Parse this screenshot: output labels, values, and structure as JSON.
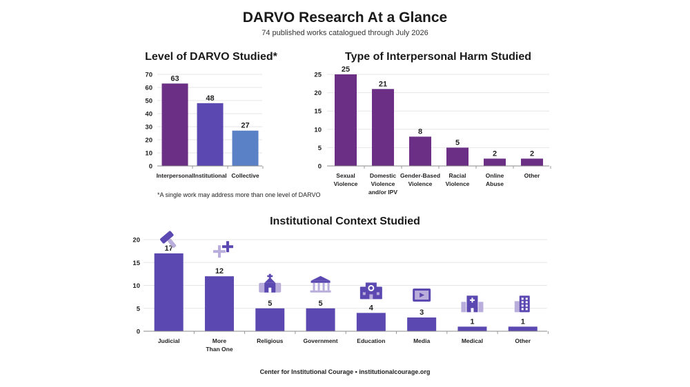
{
  "header": {
    "title": "DARVO Research At a Glance",
    "subtitle": "74 published works catalogued through July 2026"
  },
  "footnote": "*A single work may address more than one level of DARVO",
  "footer": "Center for Institutional Courage  •  institutionalcourage.org",
  "colors": {
    "purple": "#6b2f86",
    "indigo": "#5b48b0",
    "blue": "#5a80c5",
    "icon_dark": "#5b48b0",
    "icon_light": "#b8addb"
  },
  "chart_data": [
    {
      "type": "bar",
      "title": "Level of DARVO Studied*",
      "categories": [
        "Interpersonal",
        "Institutional",
        "Collective"
      ],
      "values": [
        63,
        48,
        27
      ],
      "bar_colors": [
        "#6b2f86",
        "#5b48b0",
        "#5a80c5"
      ],
      "ylim": [
        0,
        70
      ],
      "yticks": [
        0,
        10,
        20,
        30,
        40,
        50,
        60,
        70
      ],
      "grid": true
    },
    {
      "type": "bar",
      "title": "Type of Interpersonal Harm Studied",
      "categories": [
        [
          "Sexual",
          "Violence"
        ],
        [
          "Domestic",
          "Violence",
          "and/or IPV"
        ],
        [
          "Gender-Based",
          "Violence"
        ],
        [
          "Racial",
          "Violence"
        ],
        [
          "Online",
          "Abuse"
        ],
        [
          "Other"
        ]
      ],
      "values": [
        25,
        21,
        8,
        5,
        2,
        2
      ],
      "bar_color": "#6b2f86",
      "ylim": [
        0,
        25
      ],
      "yticks": [
        0,
        5,
        10,
        15,
        20,
        25
      ],
      "grid": true
    },
    {
      "type": "bar",
      "title": "Institutional Context Studied",
      "categories": [
        [
          "Judicial"
        ],
        [
          "More",
          "Than One"
        ],
        [
          "Religious"
        ],
        [
          "Government"
        ],
        [
          "Education"
        ],
        [
          "Media"
        ],
        [
          "Medical"
        ],
        [
          "Other"
        ]
      ],
      "values": [
        17,
        12,
        5,
        5,
        4,
        3,
        1,
        1
      ],
      "icons": [
        "gavel-icon",
        "plus-icon",
        "church-icon",
        "government-building-icon",
        "school-icon",
        "video-player-icon",
        "hospital-icon",
        "office-building-icon"
      ],
      "bar_color": "#5b48b0",
      "ylim": [
        0,
        20
      ],
      "yticks": [
        0,
        5,
        10,
        15,
        20
      ],
      "grid": true
    }
  ]
}
